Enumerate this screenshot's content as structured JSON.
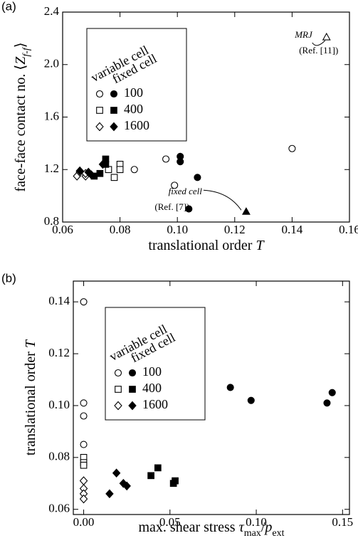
{
  "chart_data": [
    {
      "type": "scatter",
      "panel_label": "(a)",
      "xlabel": [
        {
          "text": "translational order "
        },
        {
          "text": "T",
          "italic": true
        }
      ],
      "ylabel": [
        {
          "text": "face-face contact no. ⟨"
        },
        {
          "text": "Z",
          "italic": true
        },
        {
          "text": "f-f",
          "sub": true,
          "italic": true
        },
        {
          "text": "⟩"
        }
      ],
      "xlim": [
        0.06,
        0.16
      ],
      "ylim": [
        0.8,
        2.4
      ],
      "xticks": [
        0.06,
        0.08,
        {
          "value": 0.1,
          "label": "0.10"
        },
        0.12,
        0.14,
        0.16
      ],
      "yticks": [
        0.8,
        1.2,
        1.6,
        {
          "value": 2,
          "label": "2.0"
        },
        2.4
      ],
      "series": [
        {
          "name": "100",
          "cell": "variable cell",
          "marker": "circle",
          "filled": false,
          "color": "#000",
          "x": [
            0.085,
            0.096,
            0.099,
            0.14
          ],
          "values": [
            1.2,
            1.28,
            1.08,
            1.36
          ]
        },
        {
          "name": "100",
          "cell": "fixed cell",
          "marker": "circle",
          "filled": true,
          "color": "#000",
          "x": [
            0.101,
            0.101,
            0.107,
            0.104
          ],
          "values": [
            1.3,
            1.26,
            1.14,
            0.9
          ]
        },
        {
          "name": "400",
          "cell": "variable cell",
          "marker": "square",
          "filled": false,
          "color": "#000",
          "x": [
            0.076,
            0.078,
            0.08,
            0.08
          ],
          "values": [
            1.2,
            1.14,
            1.24,
            1.2
          ]
        },
        {
          "name": "400",
          "cell": "fixed cell",
          "marker": "square",
          "filled": true,
          "color": "#000",
          "x": [
            0.075,
            0.075,
            0.071,
            0.073
          ],
          "values": [
            1.28,
            1.24,
            1.15,
            1.17
          ]
        },
        {
          "name": "1600",
          "cell": "variable cell",
          "marker": "diamond",
          "filled": false,
          "color": "#000",
          "x": [
            0.065,
            0.066,
            0.068,
            0.068
          ],
          "values": [
            1.15,
            1.18,
            1.15,
            1.17
          ]
        },
        {
          "name": "1600",
          "cell": "fixed cell",
          "marker": "diamond",
          "filled": true,
          "color": "#000",
          "x": [
            0.066,
            0.069,
            0.07,
            0.074
          ],
          "values": [
            1.19,
            1.18,
            1.16,
            1.24
          ]
        }
      ],
      "annotations": [
        {
          "text": "MRJ",
          "ref": "(Ref. [11])",
          "x": 0.152,
          "y": 2.21,
          "marker": "triangle",
          "filled": false
        },
        {
          "text": "fixed cell",
          "ref": "(Ref. [7])",
          "x": 0.124,
          "y": 0.88,
          "marker": "triangle",
          "filled": true
        }
      ]
    },
    {
      "type": "scatter",
      "panel_label": "(b)",
      "xlabel": [
        {
          "text": "max. shear stress  "
        },
        {
          "text": "τ",
          "italic": true
        },
        {
          "text": "max",
          "sub": true
        },
        {
          "text": "/"
        },
        {
          "text": "p",
          "italic": true
        },
        {
          "text": "ext",
          "sub": true
        }
      ],
      "ylabel": [
        {
          "text": "translational order "
        },
        {
          "text": "T",
          "italic": true
        }
      ],
      "xlim": [
        -0.006,
        0.154
      ],
      "ylim": [
        0.058,
        0.148
      ],
      "xticks": [
        {
          "value": 0,
          "label": "0.00"
        },
        0.05,
        {
          "value": 0.1,
          "label": "0.10"
        },
        0.15
      ],
      "yticks": [
        0.06,
        0.08,
        {
          "value": 0.1,
          "label": "0.10"
        },
        0.12,
        0.14
      ],
      "series": [
        {
          "name": "100",
          "cell": "variable cell",
          "marker": "circle",
          "filled": false,
          "color": "#000",
          "x": [
            0,
            0,
            0,
            0
          ],
          "values": [
            0.14,
            0.101,
            0.096,
            0.085
          ]
        },
        {
          "name": "100",
          "cell": "fixed cell",
          "marker": "circle",
          "filled": true,
          "color": "#000",
          "x": [
            0.085,
            0.097,
            0.141,
            0.144
          ],
          "values": [
            0.107,
            0.102,
            0.101,
            0.105
          ]
        },
        {
          "name": "400",
          "cell": "variable cell",
          "marker": "square",
          "filled": false,
          "color": "#000",
          "x": [
            0,
            0,
            0
          ],
          "values": [
            0.08,
            0.078,
            0.077
          ]
        },
        {
          "name": "400",
          "cell": "fixed cell",
          "marker": "square",
          "filled": true,
          "color": "#000",
          "x": [
            0.039,
            0.043,
            0.052,
            0.053
          ],
          "values": [
            0.073,
            0.076,
            0.07,
            0.071
          ]
        },
        {
          "name": "1600",
          "cell": "variable cell",
          "marker": "diamond",
          "filled": false,
          "color": "#000",
          "x": [
            0,
            0,
            0,
            0
          ],
          "values": [
            0.071,
            0.068,
            0.066,
            0.064
          ]
        },
        {
          "name": "1600",
          "cell": "fixed cell",
          "marker": "diamond",
          "filled": true,
          "color": "#000",
          "x": [
            0.015,
            0.019,
            0.023,
            0.025
          ],
          "values": [
            0.066,
            0.074,
            0.07,
            0.069
          ]
        }
      ]
    }
  ]
}
